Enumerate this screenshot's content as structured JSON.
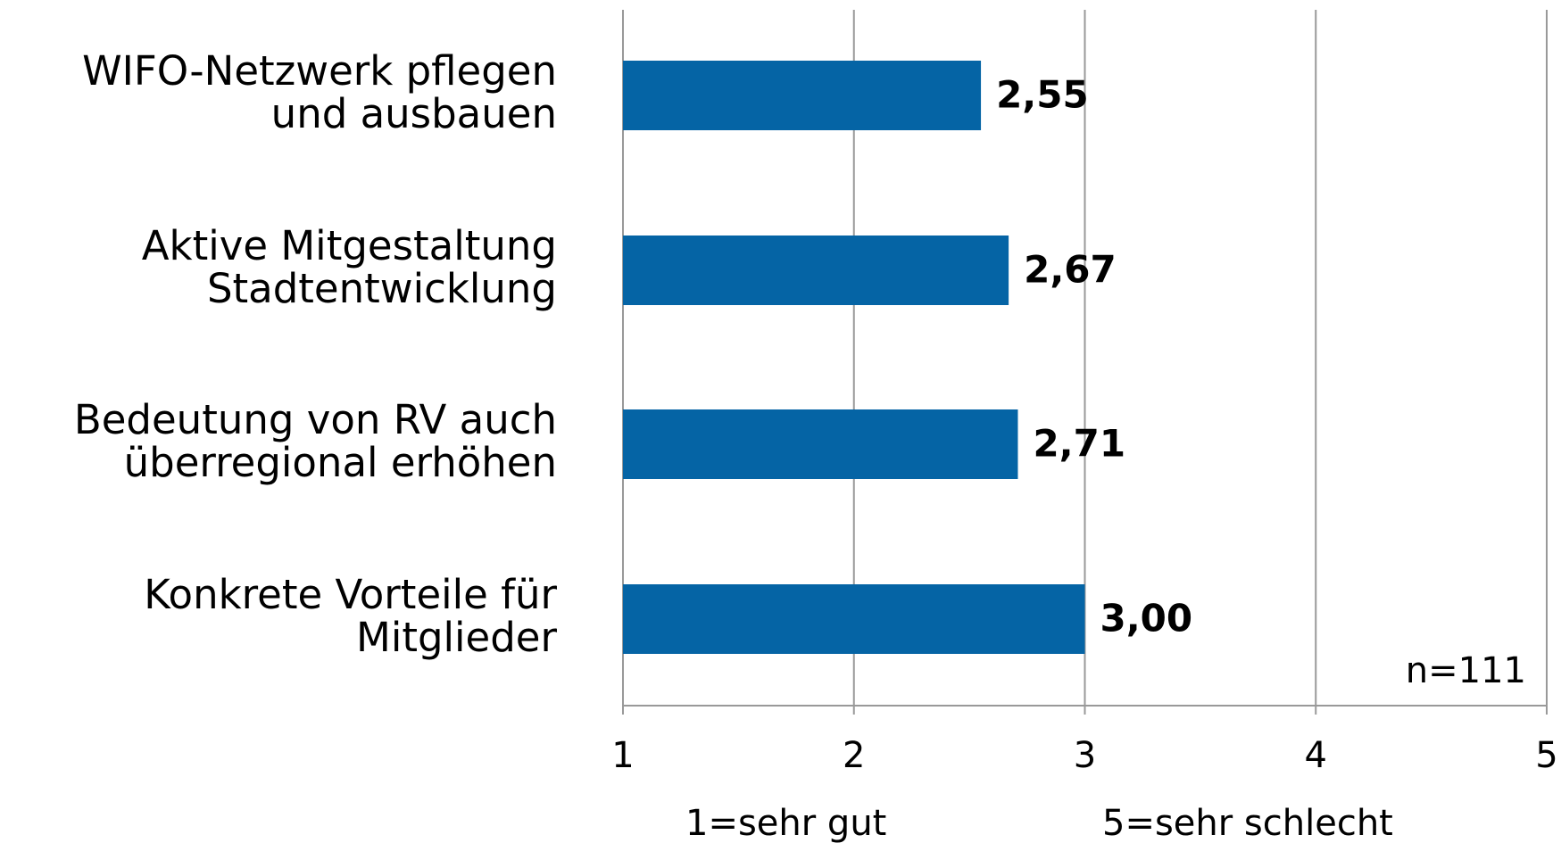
{
  "chart_data": {
    "type": "barh",
    "categories": [
      [
        "WIFO-Netzwerk pflegen",
        "und ausbauen"
      ],
      [
        "Aktive Mitgestaltung",
        "Stadtentwicklung"
      ],
      [
        "Bedeutung von RV auch",
        "überregional erhöhen"
      ],
      [
        "Konkrete Vorteile für",
        "Mitglieder"
      ]
    ],
    "values": [
      2.55,
      2.67,
      2.71,
      3.0
    ],
    "value_labels": [
      "2,55",
      "2,67",
      "2,71",
      "3,00"
    ],
    "color": "#0564a5",
    "xlim": [
      1,
      5
    ],
    "xticks": [
      1,
      2,
      3,
      4,
      5
    ],
    "grid": true,
    "annotations": [
      "n=111",
      "1=sehr gut",
      "5=sehr schlecht"
    ]
  }
}
